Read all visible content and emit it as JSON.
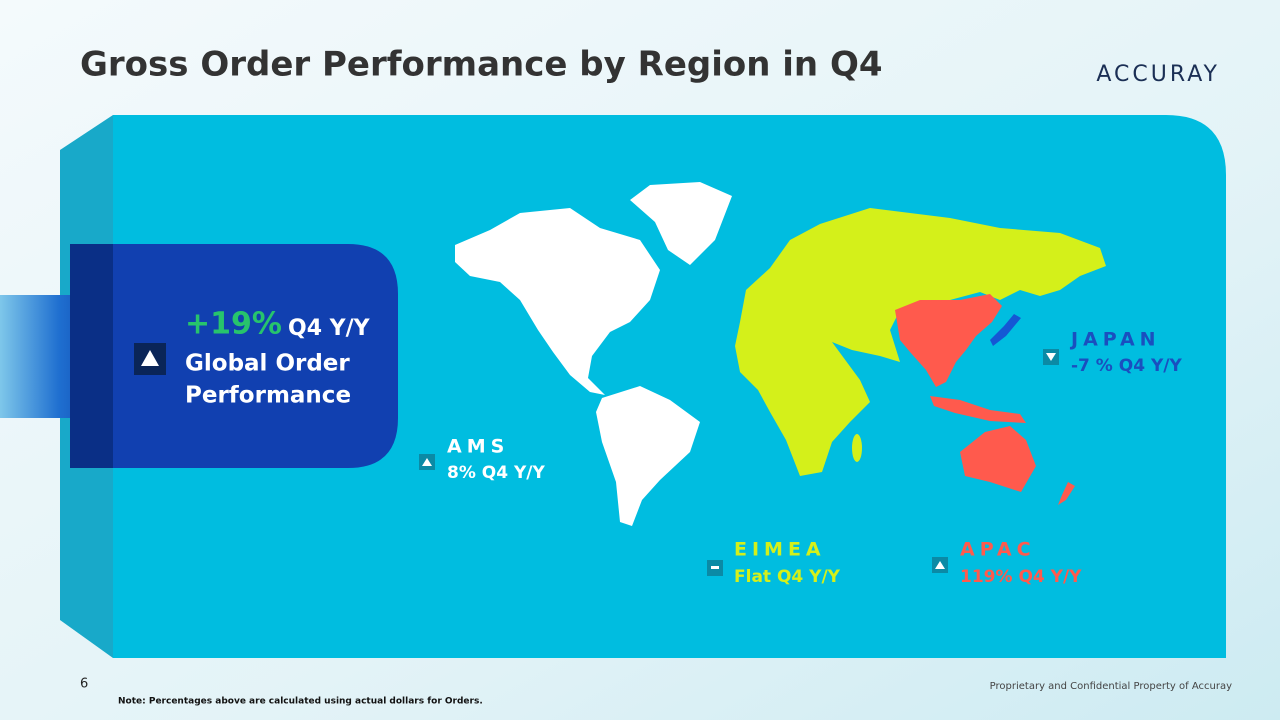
{
  "header": {
    "title": "Gross Order Performance by Region in Q4",
    "logo": "ACCURAY"
  },
  "global": {
    "value": "+19%",
    "period": "Q4 Y/Y",
    "label_lines": [
      "Global Order",
      "Performance"
    ]
  },
  "regions": [
    {
      "name": "AMS",
      "change": "8% Q4 Y/Y"
    },
    {
      "name": "EIMEA",
      "change": "Flat Q4 Y/Y"
    },
    {
      "name": "APAC",
      "change": "119% Q4 Y/Y"
    },
    {
      "name": "JAPAN",
      "change": "-7 % Q4 Y/Y"
    }
  ],
  "footer": {
    "page": "6",
    "note": "Note: Percentages above are calculated using actual dollars for Orders.",
    "confidential": "Proprietary and Confidential Property of Accuray"
  }
}
